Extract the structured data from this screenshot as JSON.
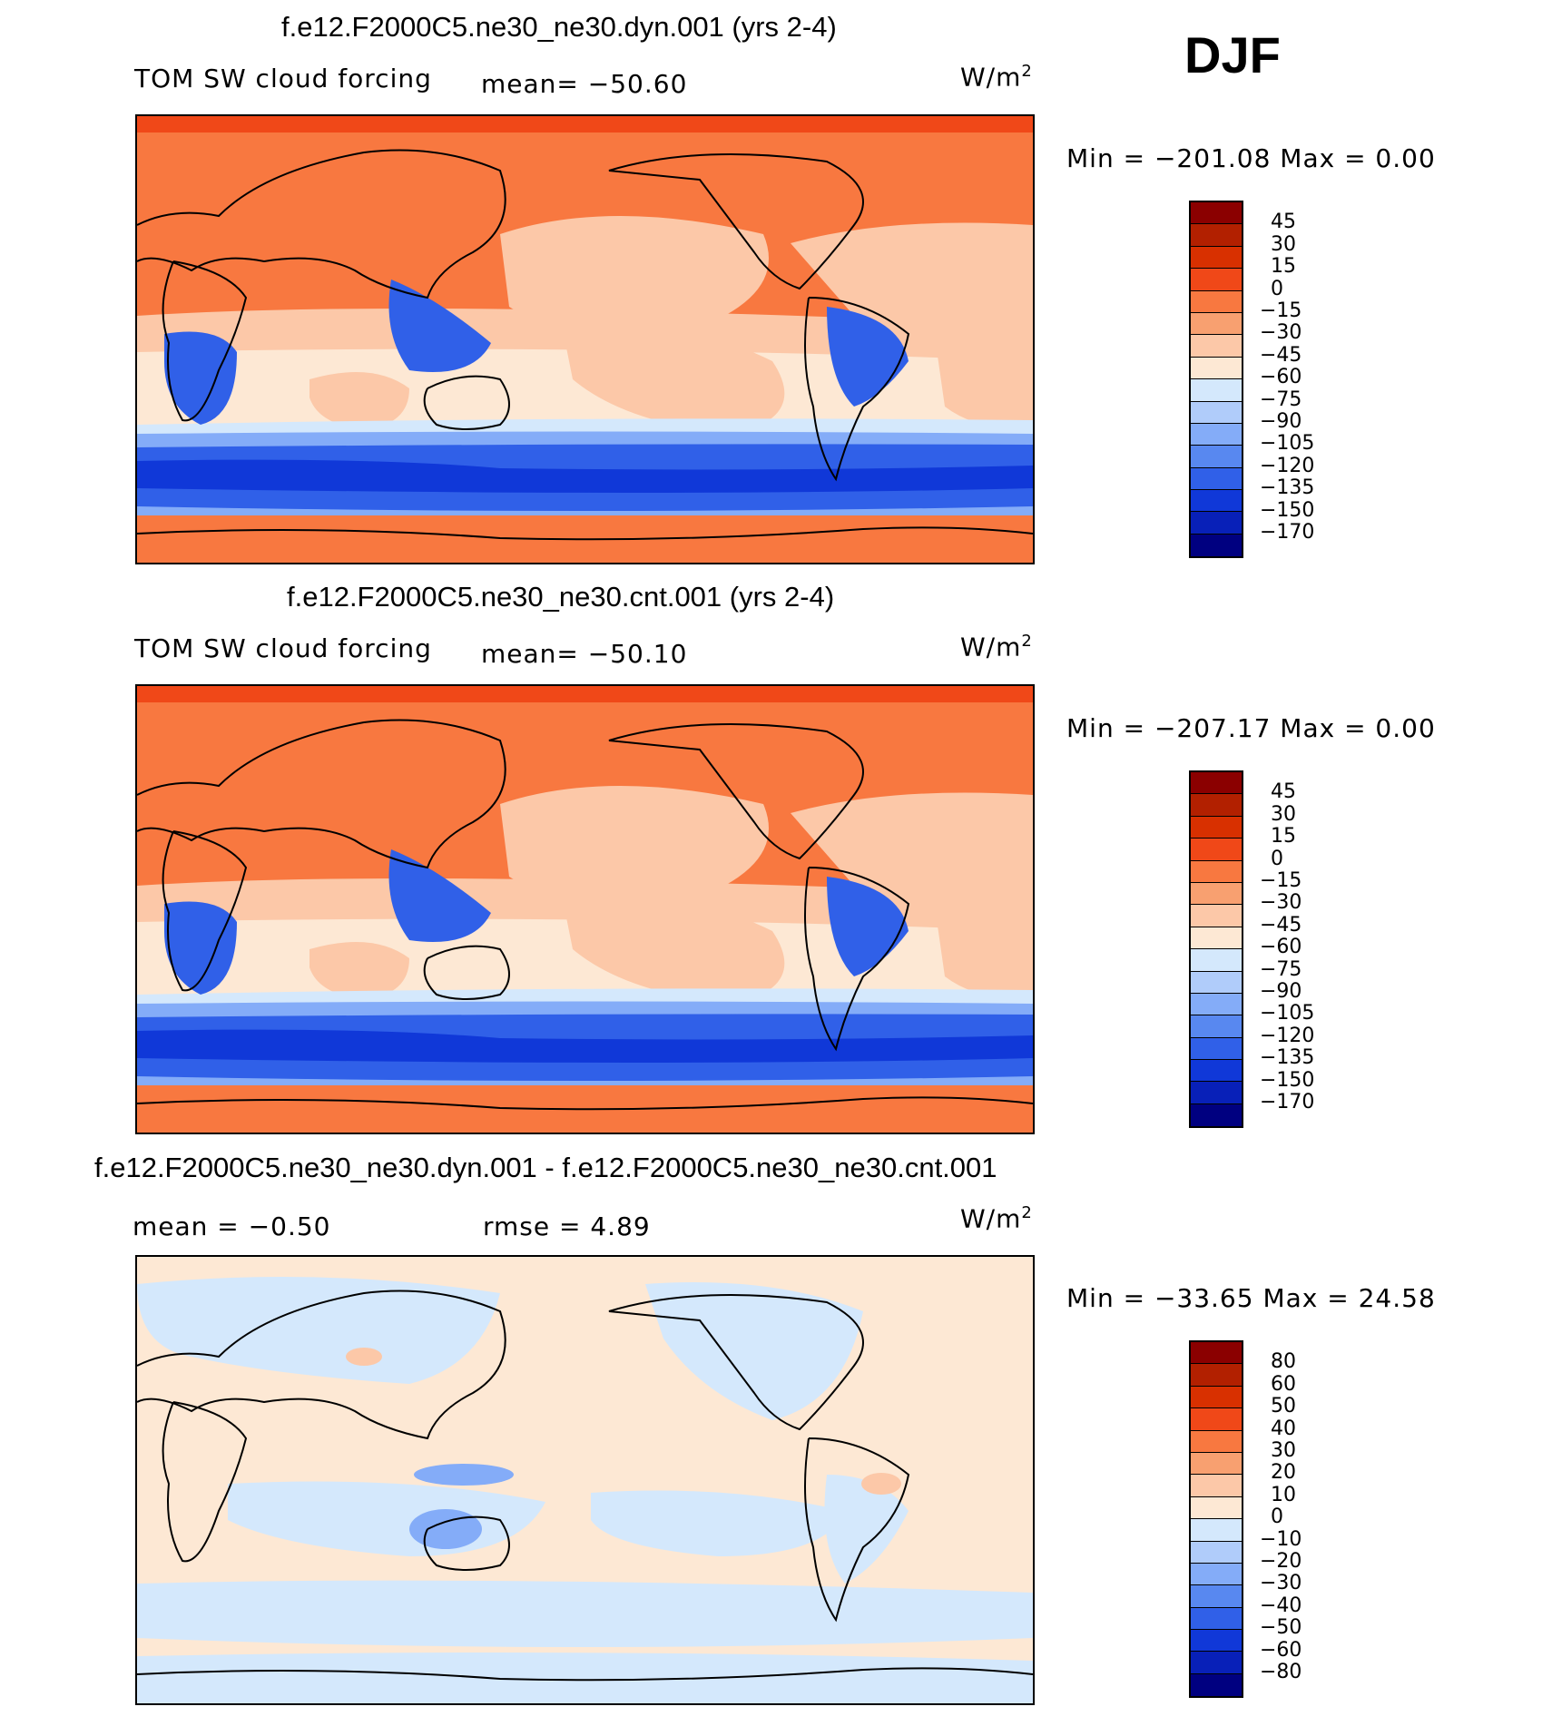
{
  "season": "DJF",
  "panels": [
    {
      "title": "f.e12.F2000C5.ne30_ne30.dyn.001 (yrs 2-4)",
      "left_label": "TOM SW cloud forcing",
      "mean_label": "mean= −50.60",
      "units_base": "W/m",
      "units_sup": "2",
      "minmax": "Min = −201.08 Max =   0.00",
      "kind": "field",
      "colorbar_labels": [
        "45",
        "30",
        "15",
        "0",
        "−15",
        "−30",
        "−45",
        "−60",
        "−75",
        "−90",
        "−105",
        "−120",
        "−135",
        "−150",
        "−170"
      ]
    },
    {
      "title": "f.e12.F2000C5.ne30_ne30.cnt.001 (yrs 2-4)",
      "left_label": "TOM SW cloud forcing",
      "mean_label": "mean= −50.10",
      "units_base": "W/m",
      "units_sup": "2",
      "minmax": "Min = −207.17 Max =   0.00",
      "kind": "field",
      "colorbar_labels": [
        "45",
        "30",
        "15",
        "0",
        "−15",
        "−30",
        "−45",
        "−60",
        "−75",
        "−90",
        "−105",
        "−120",
        "−135",
        "−150",
        "−170"
      ]
    },
    {
      "title": "f.e12.F2000C5.ne30_ne30.dyn.001 - f.e12.F2000C5.ne30_ne30.cnt.001",
      "left_label": "mean =   −0.50",
      "mean_label": "rmse =    4.89",
      "units_base": "W/m",
      "units_sup": "2",
      "minmax": "Min = −33.65 Max =  24.58",
      "kind": "diff",
      "colorbar_labels": [
        "80",
        "60",
        "50",
        "40",
        "30",
        "20",
        "10",
        "0",
        "−10",
        "−20",
        "−30",
        "−40",
        "−50",
        "−60",
        "−80"
      ]
    }
  ],
  "colorbar_colors": [
    "#8b0000",
    "#b22000",
    "#d83000",
    "#f04818",
    "#f87840",
    "#f8a070",
    "#fcc8a8",
    "#fde8d4",
    "#d4e8fc",
    "#b0ccfa",
    "#84acf8",
    "#5888f0",
    "#3060e8",
    "#1038d8",
    "#0820b8",
    "#000080"
  ],
  "colors": {
    "ocean_warm": "#f87840",
    "land_warm": "#f06a38",
    "light_orange": "#fcc8a8",
    "pale": "#fde8d4",
    "pale_blue": "#d4e8fc",
    "blue_mid": "#84acf8",
    "blue_deep": "#3060e8",
    "blue_dark": "#1038d8",
    "top_band": "#f04818"
  }
}
